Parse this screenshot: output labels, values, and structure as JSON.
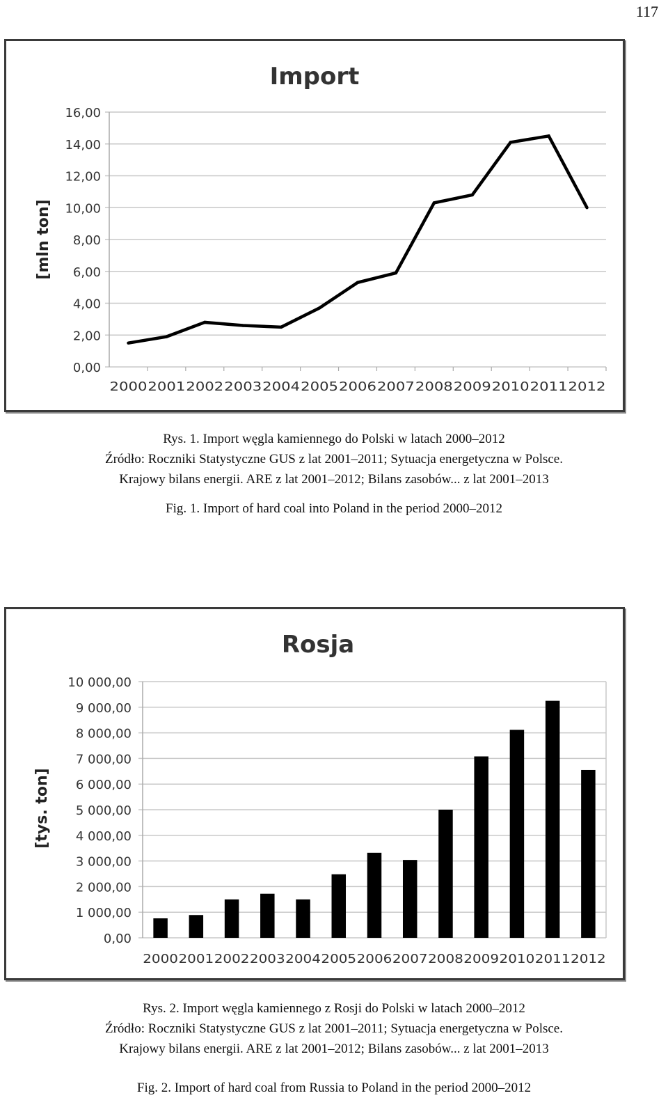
{
  "page_number": "117",
  "caption1": {
    "line1": "Rys. 1. Import węgla kamiennego do Polski w latach 2000–2012",
    "line2": "Źródło: Roczniki Statystyczne GUS z lat 2001–2011; Sytuacja energetyczna w Polsce.",
    "line3": "Krajowy bilans energii. ARE z lat 2001–2012; Bilans zasobów... z lat 2001–2013",
    "fig": "Fig. 1. Import of hard coal into Poland in the period 2000–2012"
  },
  "caption2": {
    "line1": "Rys. 2. Import węgla kamiennego z Rosji do Polski w latach 2000–2012",
    "line2": "Źródło: Roczniki Statystyczne GUS z lat 2001–2011; Sytuacja energetyczna w Polsce.",
    "line3": "Krajowy bilans energii. ARE z lat 2001–2012; Bilans zasobów... z lat 2001–2013",
    "fig": "Fig. 2. Import of hard coal from Russia to Poland in the period 2000–2012"
  },
  "chart_data": [
    {
      "type": "line",
      "title": "Import",
      "ylabel": "[mln ton]",
      "xlabel": "",
      "categories": [
        "2000",
        "2001",
        "2002",
        "2003",
        "2004",
        "2005",
        "2006",
        "2007",
        "2008",
        "2009",
        "2010",
        "2011",
        "2012"
      ],
      "values": [
        1.5,
        1.9,
        2.8,
        2.6,
        2.5,
        3.7,
        5.3,
        5.9,
        10.3,
        10.8,
        14.1,
        14.5,
        10.0
      ],
      "ylim": [
        0,
        16
      ],
      "yticks": [
        "0,00",
        "2,00",
        "4,00",
        "6,00",
        "8,00",
        "10,00",
        "12,00",
        "14,00",
        "16,00"
      ],
      "grid": true,
      "color": "#000000"
    },
    {
      "type": "bar",
      "title": "Rosja",
      "ylabel": "[tys. ton]",
      "xlabel": "",
      "categories": [
        "2000",
        "2001",
        "2002",
        "2003",
        "2004",
        "2005",
        "2006",
        "2007",
        "2008",
        "2009",
        "2010",
        "2011",
        "2012"
      ],
      "values": [
        760,
        890,
        1500,
        1720,
        1500,
        2480,
        3320,
        3040,
        5000,
        7080,
        8120,
        9250,
        6550
      ],
      "ylim": [
        0,
        10000
      ],
      "yticks": [
        "0,00",
        "1 000,00",
        "2 000,00",
        "3 000,00",
        "4 000,00",
        "5 000,00",
        "6 000,00",
        "7 000,00",
        "8 000,00",
        "9 000,00",
        "10 000,00"
      ],
      "grid": true,
      "color": "#000000"
    }
  ]
}
